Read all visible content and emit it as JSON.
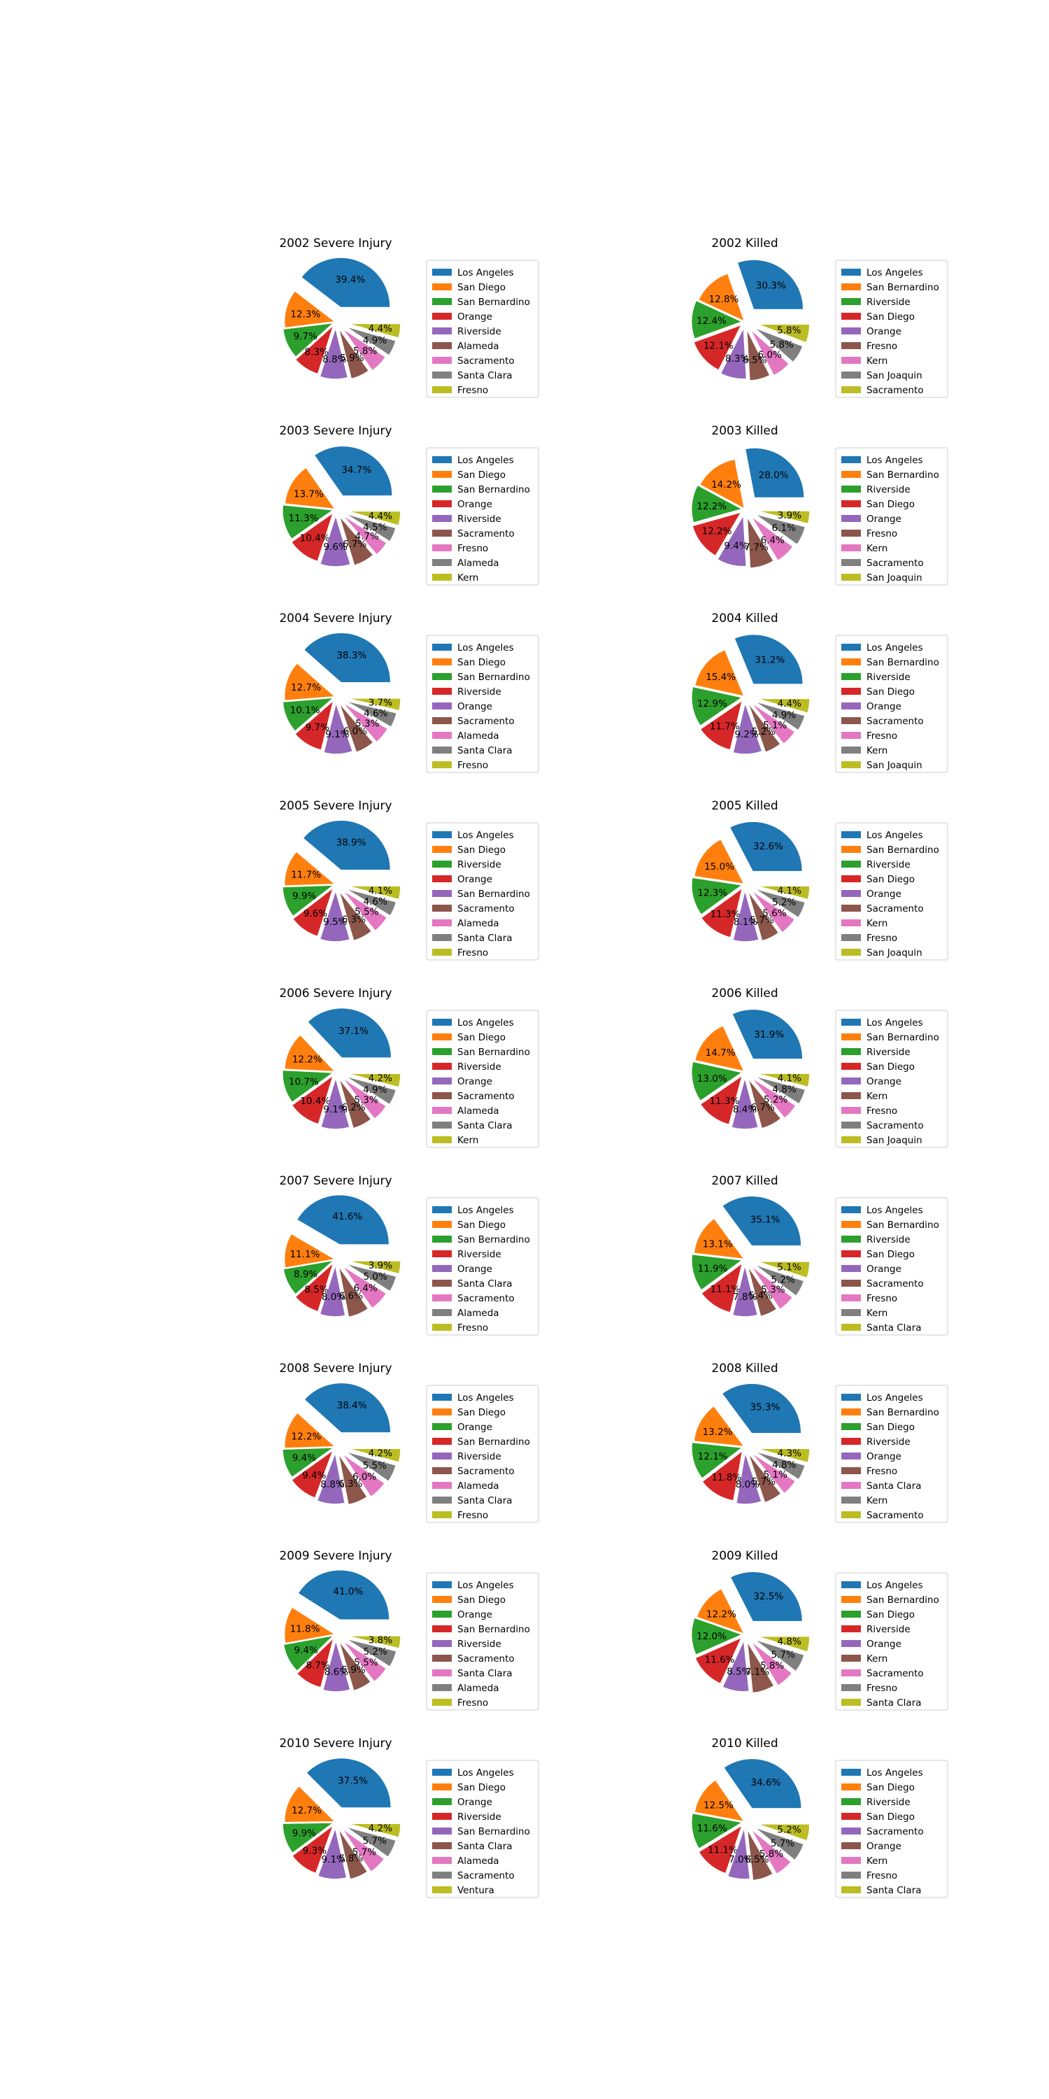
{
  "palette": [
    "#1f77b4",
    "#ff7f0e",
    "#2ca02c",
    "#d62728",
    "#9467bd",
    "#8c564b",
    "#e377c2",
    "#7f7f7f",
    "#bcbd22"
  ],
  "chart_data": [
    {
      "type": "pie",
      "title": "2002 Severe Injury",
      "labels": [
        "Los Angeles",
        "San Diego",
        "San Bernardino",
        "Orange",
        "Riverside",
        "Alameda",
        "Sacramento",
        "Santa Clara",
        "Fresno"
      ],
      "values": [
        39.4,
        12.3,
        9.7,
        8.3,
        8.8,
        5.9,
        5.8,
        4.9,
        4.4
      ],
      "value_labels": [
        "39.4%",
        "12.3%",
        "9.7%",
        "8.3%",
        "8.8%",
        "5.9%",
        "5.8%",
        "4.9%",
        "4.4%"
      ]
    },
    {
      "type": "pie",
      "title": "2002 Killed",
      "labels": [
        "Los Angeles",
        "San Bernardino",
        "Riverside",
        "San Diego",
        "Orange",
        "Fresno",
        "Kern",
        "San Joaquin",
        "Sacramento"
      ],
      "values": [
        30.3,
        12.8,
        12.4,
        12.1,
        8.3,
        6.5,
        6.0,
        5.8,
        5.8
      ],
      "value_labels": [
        "30.3%",
        "12.8%",
        "12.4%",
        "12.1%",
        "8.3%",
        "6.5%",
        "6.0%",
        "5.8%",
        "5.8%"
      ]
    },
    {
      "type": "pie",
      "title": "2003 Severe Injury",
      "labels": [
        "Los Angeles",
        "San Diego",
        "San Bernardino",
        "Orange",
        "Riverside",
        "Sacramento",
        "Fresno",
        "Alameda",
        "Kern"
      ],
      "values": [
        34.7,
        13.7,
        11.3,
        10.4,
        9.6,
        6.7,
        4.7,
        4.5,
        4.4
      ],
      "value_labels": [
        "34.7%",
        "13.7%",
        "11.3%",
        "10.4%",
        "9.6%",
        "6.7%",
        "4.7%",
        "4.5%",
        "4.4%"
      ]
    },
    {
      "type": "pie",
      "title": "2003 Killed",
      "labels": [
        "Los Angeles",
        "San Bernardino",
        "Riverside",
        "San Diego",
        "Orange",
        "Fresno",
        "Kern",
        "Sacramento",
        "San Joaquin"
      ],
      "values": [
        28.0,
        14.2,
        12.2,
        12.2,
        9.4,
        7.7,
        6.4,
        6.1,
        3.9
      ],
      "value_labels": [
        "28.0%",
        "14.2%",
        "12.2%",
        "12.2%",
        "9.4%",
        "7.7%",
        "6.4%",
        "6.1%",
        "3.9%"
      ]
    },
    {
      "type": "pie",
      "title": "2004 Severe Injury",
      "labels": [
        "Los Angeles",
        "San Diego",
        "San Bernardino",
        "Riverside",
        "Orange",
        "Sacramento",
        "Alameda",
        "Santa Clara",
        "Fresno"
      ],
      "values": [
        38.3,
        12.7,
        10.1,
        9.7,
        9.1,
        6.0,
        5.3,
        4.6,
        3.7
      ],
      "value_labels": [
        "38.3%",
        "12.7%",
        "10.1%",
        "9.7%",
        "9.1%",
        "6.0%",
        "5.3%",
        "4.6%",
        "3.7%"
      ]
    },
    {
      "type": "pie",
      "title": "2004 Killed",
      "labels": [
        "Los Angeles",
        "San Bernardino",
        "Riverside",
        "San Diego",
        "Orange",
        "Sacramento",
        "Fresno",
        "Kern",
        "San Joaquin"
      ],
      "values": [
        31.2,
        15.4,
        12.9,
        11.7,
        9.2,
        5.2,
        5.1,
        4.9,
        4.4
      ],
      "value_labels": [
        "31.2%",
        "15.4%",
        "12.9%",
        "11.7%",
        "9.2%",
        "5.2%",
        "5.1%",
        "4.9%",
        "4.4%"
      ]
    },
    {
      "type": "pie",
      "title": "2005 Severe Injury",
      "labels": [
        "Los Angeles",
        "San Diego",
        "Riverside",
        "Orange",
        "San Bernardino",
        "Sacramento",
        "Alameda",
        "Santa Clara",
        "Fresno"
      ],
      "values": [
        38.9,
        11.7,
        9.9,
        9.6,
        9.5,
        6.3,
        5.5,
        4.6,
        4.1
      ],
      "value_labels": [
        "38.9%",
        "11.7%",
        "9.9%",
        "9.6%",
        "9.5%",
        "6.3%",
        "5.5%",
        "4.6%",
        "4.1%"
      ]
    },
    {
      "type": "pie",
      "title": "2005 Killed",
      "labels": [
        "Los Angeles",
        "San Bernardino",
        "Riverside",
        "San Diego",
        "Orange",
        "Sacramento",
        "Kern",
        "Fresno",
        "San Joaquin"
      ],
      "values": [
        32.6,
        15.0,
        12.3,
        11.3,
        8.1,
        5.7,
        5.6,
        5.2,
        4.1
      ],
      "value_labels": [
        "32.6%",
        "15.0%",
        "12.3%",
        "11.3%",
        "8.1%",
        "5.7%",
        "5.6%",
        "5.2%",
        "4.1%"
      ]
    },
    {
      "type": "pie",
      "title": "2006 Severe Injury",
      "labels": [
        "Los Angeles",
        "San Diego",
        "San Bernardino",
        "Riverside",
        "Orange",
        "Sacramento",
        "Alameda",
        "Santa Clara",
        "Kern"
      ],
      "values": [
        37.1,
        12.2,
        10.7,
        10.4,
        9.1,
        6.2,
        5.3,
        4.9,
        4.2
      ],
      "value_labels": [
        "37.1%",
        "12.2%",
        "10.7%",
        "10.4%",
        "9.1%",
        "6.2%",
        "5.3%",
        "4.9%",
        "4.2%"
      ]
    },
    {
      "type": "pie",
      "title": "2006 Killed",
      "labels": [
        "Los Angeles",
        "San Bernardino",
        "Riverside",
        "San Diego",
        "Orange",
        "Kern",
        "Fresno",
        "Sacramento",
        "San Joaquin"
      ],
      "values": [
        31.9,
        14.7,
        13.0,
        11.3,
        8.4,
        6.7,
        5.2,
        4.8,
        4.1
      ],
      "value_labels": [
        "31.9%",
        "14.7%",
        "13.0%",
        "11.3%",
        "8.4%",
        "6.7%",
        "5.2%",
        "4.8%",
        "4.1%"
      ]
    },
    {
      "type": "pie",
      "title": "2007 Severe Injury",
      "labels": [
        "Los Angeles",
        "San Diego",
        "San Bernardino",
        "Riverside",
        "Orange",
        "Santa Clara",
        "Sacramento",
        "Alameda",
        "Fresno"
      ],
      "values": [
        41.6,
        11.1,
        8.9,
        8.5,
        8.0,
        6.6,
        6.4,
        5.0,
        3.9
      ],
      "value_labels": [
        "41.6%",
        "11.1%",
        "8.9%",
        "8.5%",
        "8.0%",
        "6.6%",
        "6.4%",
        "5.0%",
        "3.9%"
      ]
    },
    {
      "type": "pie",
      "title": "2007 Killed",
      "labels": [
        "Los Angeles",
        "San Bernardino",
        "Riverside",
        "San Diego",
        "Orange",
        "Sacramento",
        "Fresno",
        "Kern",
        "Santa Clara"
      ],
      "values": [
        35.1,
        13.1,
        11.9,
        11.1,
        7.8,
        5.4,
        5.3,
        5.2,
        5.1
      ],
      "value_labels": [
        "35.1%",
        "13.1%",
        "11.9%",
        "11.1%",
        "7.8%",
        "5.4%",
        "5.3%",
        "5.2%",
        "5.1%"
      ]
    },
    {
      "type": "pie",
      "title": "2008 Severe Injury",
      "labels": [
        "Los Angeles",
        "San Diego",
        "Orange",
        "San Bernardino",
        "Riverside",
        "Sacramento",
        "Alameda",
        "Santa Clara",
        "Fresno"
      ],
      "values": [
        38.4,
        12.2,
        9.4,
        9.4,
        8.8,
        6.3,
        6.0,
        5.5,
        4.2
      ],
      "value_labels": [
        "38.4%",
        "12.2%",
        "9.4%",
        "9.4%",
        "8.8%",
        "6.3%",
        "6.0%",
        "5.5%",
        "4.2%"
      ]
    },
    {
      "type": "pie",
      "title": "2008 Killed",
      "labels": [
        "Los Angeles",
        "San Bernardino",
        "San Diego",
        "Riverside",
        "Orange",
        "Fresno",
        "Santa Clara",
        "Kern",
        "Sacramento"
      ],
      "values": [
        35.3,
        13.2,
        12.1,
        11.8,
        8.0,
        5.7,
        5.1,
        4.8,
        4.3
      ],
      "value_labels": [
        "35.3%",
        "13.2%",
        "12.1%",
        "11.8%",
        "8.0%",
        "5.7%",
        "5.1%",
        "4.8%",
        "4.3%"
      ]
    },
    {
      "type": "pie",
      "title": "2009 Severe Injury",
      "labels": [
        "Los Angeles",
        "San Diego",
        "Orange",
        "San Bernardino",
        "Riverside",
        "Sacramento",
        "Santa Clara",
        "Alameda",
        "Fresno"
      ],
      "values": [
        41.0,
        11.8,
        9.4,
        8.7,
        8.6,
        5.9,
        5.5,
        5.2,
        3.8
      ],
      "value_labels": [
        "41.0%",
        "11.8%",
        "9.4%",
        "8.7%",
        "8.6%",
        "5.9%",
        "5.5%",
        "5.2%",
        "3.8%"
      ]
    },
    {
      "type": "pie",
      "title": "2009 Killed",
      "labels": [
        "Los Angeles",
        "San Bernardino",
        "San Diego",
        "Riverside",
        "Orange",
        "Kern",
        "Sacramento",
        "Fresno",
        "Santa Clara"
      ],
      "values": [
        32.5,
        12.2,
        12.0,
        11.6,
        8.5,
        7.1,
        5.8,
        5.7,
        4.8
      ],
      "value_labels": [
        "32.5%",
        "12.2%",
        "12.0%",
        "11.6%",
        "8.5%",
        "7.1%",
        "5.8%",
        "5.7%",
        "4.8%"
      ]
    },
    {
      "type": "pie",
      "title": "2010 Severe Injury",
      "labels": [
        "Los Angeles",
        "San Diego",
        "Orange",
        "Riverside",
        "San Bernardino",
        "Santa Clara",
        "Alameda",
        "Sacramento",
        "Ventura"
      ],
      "values": [
        37.5,
        12.7,
        9.9,
        9.3,
        9.1,
        5.8,
        5.7,
        5.7,
        4.2
      ],
      "value_labels": [
        "37.5%",
        "12.7%",
        "9.9%",
        "9.3%",
        "9.1%",
        "5.8%",
        "5.7%",
        "5.7%",
        "4.2%"
      ]
    },
    {
      "type": "pie",
      "title": "2010 Killed",
      "labels": [
        "Los Angeles",
        "San Diego",
        "Riverside",
        "San Diego",
        "Sacramento",
        "Orange",
        "Kern",
        "Fresno",
        "Santa Clara"
      ],
      "values": [
        34.6,
        12.5,
        11.6,
        11.1,
        7.0,
        6.5,
        5.8,
        5.7,
        5.2
      ],
      "value_labels": [
        "34.6%",
        "12.5%",
        "11.6%",
        "11.1%",
        "7.0%",
        "6.5%",
        "5.8%",
        "5.7%",
        "5.2%"
      ]
    }
  ]
}
